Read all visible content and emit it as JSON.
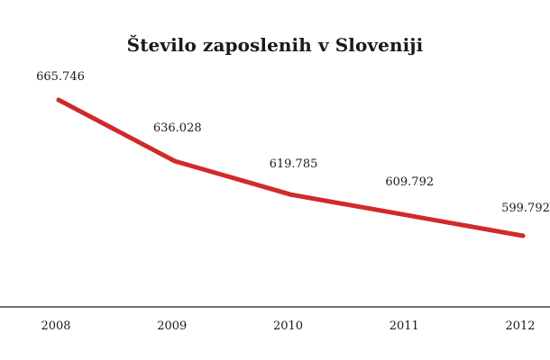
{
  "chart_data": {
    "type": "line",
    "title": "Število zaposlenih v Sloveniji",
    "categories": [
      "2008",
      "2009",
      "2010",
      "2011",
      "2012"
    ],
    "series": [
      {
        "values": [
          665746,
          636028,
          619785,
          609792,
          599792
        ],
        "labels": [
          "665.746",
          "636.028",
          "619.785",
          "609.792",
          "599.792"
        ],
        "color": "#d12a2a"
      }
    ],
    "xlabel": "",
    "ylabel": "",
    "grid": false,
    "legend": "none"
  }
}
